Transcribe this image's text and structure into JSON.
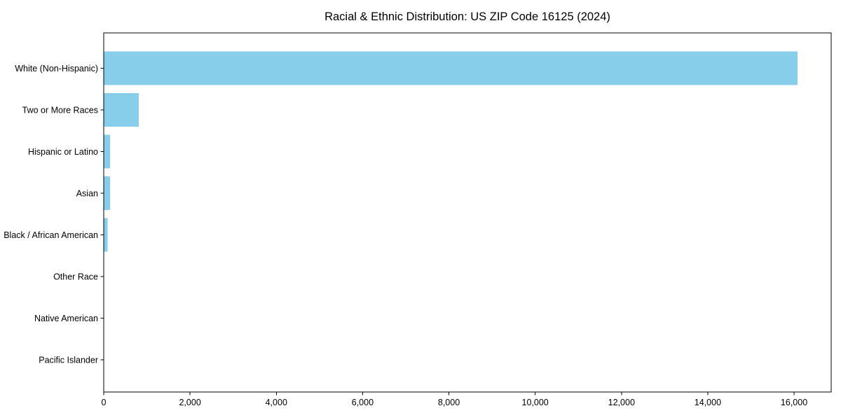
{
  "chart_data": {
    "type": "bar",
    "orientation": "horizontal",
    "title": "Racial & Ethnic Distribution: US ZIP Code 16125 (2024)",
    "xlabel": "",
    "ylabel": "",
    "categories": [
      "White (Non-Hispanic)",
      "Two or More Races",
      "Hispanic or Latino",
      "Asian",
      "Black / African American",
      "Other Race",
      "Native American",
      "Pacific Islander"
    ],
    "values": [
      16080,
      810,
      150,
      145,
      90,
      0,
      0,
      0
    ],
    "xlim": [
      0,
      16860
    ],
    "x_ticks": [
      0,
      2000,
      4000,
      6000,
      8000,
      10000,
      12000,
      14000,
      16000
    ],
    "x_tick_labels": [
      "0",
      "2,000",
      "4,000",
      "6,000",
      "8,000",
      "10,000",
      "12,000",
      "14,000",
      "16,000"
    ],
    "grid": false,
    "legend": null,
    "bar_color": "#87CEEB",
    "text_color": "#000000",
    "spine_color": "#000000",
    "background_color": "#ffffff"
  }
}
